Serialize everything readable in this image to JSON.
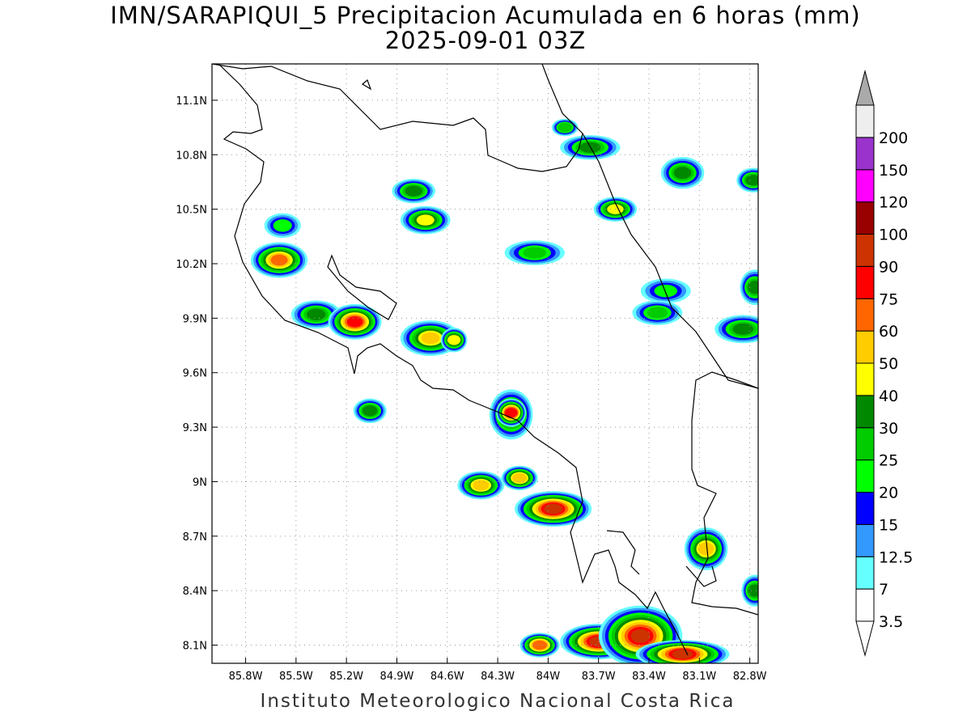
{
  "title": {
    "line1": "IMN/SARAPIQUI_5 Precipitacion Acumulada en 6 horas (mm)",
    "line2": "2025-09-01 03Z"
  },
  "footer": "Instituto Meteorologico Nacional Costa Rica",
  "map": {
    "lat_range": [
      8.0,
      11.3
    ],
    "lon_range": [
      -86.0,
      -82.75
    ],
    "lat_labels": [
      {
        "value": 11.1,
        "text": "11.1N"
      },
      {
        "value": 10.8,
        "text": "10.8N"
      },
      {
        "value": 10.5,
        "text": "10.5N"
      },
      {
        "value": 10.2,
        "text": "10.2N"
      },
      {
        "value": 9.9,
        "text": "9.9N"
      },
      {
        "value": 9.6,
        "text": "9.6N"
      },
      {
        "value": 9.3,
        "text": "9.3N"
      },
      {
        "value": 9.0,
        "text": "9N"
      },
      {
        "value": 8.7,
        "text": "8.7N"
      },
      {
        "value": 8.4,
        "text": "8.4N"
      },
      {
        "value": 8.1,
        "text": "8.1N"
      }
    ],
    "lon_labels": [
      {
        "value": -85.8,
        "text": "85.8W"
      },
      {
        "value": -85.5,
        "text": "85.5W"
      },
      {
        "value": -85.2,
        "text": "85.2W"
      },
      {
        "value": -84.9,
        "text": "84.9W"
      },
      {
        "value": -84.6,
        "text": "84.6W"
      },
      {
        "value": -84.3,
        "text": "84.3W"
      },
      {
        "value": -84.0,
        "text": "84W"
      },
      {
        "value": -83.7,
        "text": "83.7W"
      },
      {
        "value": -83.4,
        "text": "83.4W"
      },
      {
        "value": -83.1,
        "text": "83.1W"
      },
      {
        "value": -82.8,
        "text": "82.8W"
      }
    ]
  },
  "colorbar": {
    "bins": [
      {
        "label": "3.5",
        "color": "#ffffff"
      },
      {
        "label": "7",
        "color": "#66ffff"
      },
      {
        "label": "12.5",
        "color": "#3399ff"
      },
      {
        "label": "15",
        "color": "#0000ff"
      },
      {
        "label": "20",
        "color": "#00ff00"
      },
      {
        "label": "25",
        "color": "#00cc00"
      },
      {
        "label": "30",
        "color": "#008800"
      },
      {
        "label": "40",
        "color": "#ffff00"
      },
      {
        "label": "50",
        "color": "#ffcc00"
      },
      {
        "label": "60",
        "color": "#ff6600"
      },
      {
        "label": "75",
        "color": "#ff0000"
      },
      {
        "label": "90",
        "color": "#cc3300"
      },
      {
        "label": "100",
        "color": "#990000"
      },
      {
        "label": "120",
        "color": "#ff00ff"
      },
      {
        "label": "150",
        "color": "#9933cc"
      },
      {
        "label": "200",
        "color": "#eeeeee"
      }
    ],
    "top_arrow_color": "#aaaaaa",
    "bottom_arrow_color": "#ffffff"
  },
  "precip_cells": [
    {
      "lon": -85.6,
      "lat": 10.22,
      "rx": 0.14,
      "ry": 0.08,
      "level": 9
    },
    {
      "lon": -85.58,
      "lat": 10.41,
      "rx": 0.08,
      "ry": 0.05,
      "level": 4
    },
    {
      "lon": -84.8,
      "lat": 10.6,
      "rx": 0.1,
      "ry": 0.05,
      "level": 6
    },
    {
      "lon": -84.73,
      "lat": 10.44,
      "rx": 0.12,
      "ry": 0.06,
      "level": 7
    },
    {
      "lon": -85.38,
      "lat": 9.92,
      "rx": 0.12,
      "ry": 0.06,
      "level": 6
    },
    {
      "lon": -85.15,
      "lat": 9.88,
      "rx": 0.13,
      "ry": 0.08,
      "level": 10
    },
    {
      "lon": -84.7,
      "lat": 9.79,
      "rx": 0.15,
      "ry": 0.08,
      "level": 8
    },
    {
      "lon": -84.56,
      "lat": 9.78,
      "rx": 0.05,
      "ry": 0.05,
      "level": 7
    },
    {
      "lon": -85.06,
      "lat": 9.39,
      "rx": 0.07,
      "ry": 0.05,
      "level": 6
    },
    {
      "lon": -84.22,
      "lat": 9.37,
      "rx": 0.1,
      "ry": 0.12,
      "level": 8
    },
    {
      "lon": -84.22,
      "lat": 9.38,
      "rx": 0.06,
      "ry": 0.06,
      "level": 10
    },
    {
      "lon": -84.4,
      "lat": 8.98,
      "rx": 0.11,
      "ry": 0.06,
      "level": 8
    },
    {
      "lon": -84.17,
      "lat": 9.02,
      "rx": 0.08,
      "ry": 0.05,
      "level": 8
    },
    {
      "lon": -83.97,
      "lat": 8.85,
      "rx": 0.2,
      "ry": 0.08,
      "level": 11
    },
    {
      "lon": -83.06,
      "lat": 8.63,
      "rx": 0.1,
      "ry": 0.1,
      "level": 8
    },
    {
      "lon": -82.77,
      "lat": 8.4,
      "rx": 0.05,
      "ry": 0.07,
      "level": 6
    },
    {
      "lon": -83.7,
      "lat": 8.12,
      "rx": 0.2,
      "ry": 0.08,
      "level": 11
    },
    {
      "lon": -83.45,
      "lat": 8.15,
      "rx": 0.22,
      "ry": 0.15,
      "level": 11
    },
    {
      "lon": -83.2,
      "lat": 8.05,
      "rx": 0.25,
      "ry": 0.06,
      "level": 11
    },
    {
      "lon": -84.05,
      "lat": 8.1,
      "rx": 0.09,
      "ry": 0.05,
      "level": 9
    },
    {
      "lon": -83.2,
      "lat": 10.7,
      "rx": 0.1,
      "ry": 0.07,
      "level": 6
    },
    {
      "lon": -83.75,
      "lat": 10.84,
      "rx": 0.15,
      "ry": 0.05,
      "level": 6
    },
    {
      "lon": -84.08,
      "lat": 10.26,
      "rx": 0.15,
      "ry": 0.05,
      "level": 5
    },
    {
      "lon": -83.6,
      "lat": 10.5,
      "rx": 0.1,
      "ry": 0.05,
      "level": 7
    },
    {
      "lon": -82.84,
      "lat": 9.84,
      "rx": 0.14,
      "ry": 0.06,
      "level": 6
    },
    {
      "lon": -82.77,
      "lat": 10.07,
      "rx": 0.06,
      "ry": 0.08,
      "level": 6
    },
    {
      "lon": -82.78,
      "lat": 10.66,
      "rx": 0.07,
      "ry": 0.05,
      "level": 6
    },
    {
      "lon": -83.3,
      "lat": 10.05,
      "rx": 0.12,
      "ry": 0.05,
      "level": 4
    },
    {
      "lon": -83.35,
      "lat": 9.93,
      "rx": 0.12,
      "ry": 0.05,
      "level": 5
    },
    {
      "lon": -83.9,
      "lat": 10.95,
      "rx": 0.05,
      "ry": 0.03,
      "level": 5
    }
  ]
}
